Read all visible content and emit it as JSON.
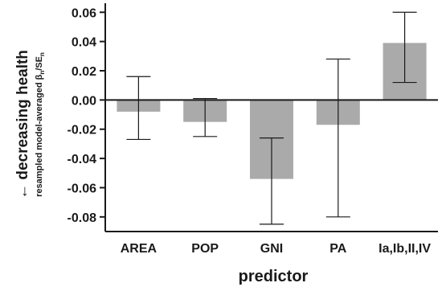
{
  "chart_data": {
    "type": "bar",
    "categories": [
      "AREA",
      "POP",
      "GNI",
      "PA",
      "Ia,Ib,II,IV"
    ],
    "values": [
      -0.008,
      -0.015,
      -0.054,
      -0.017,
      0.039
    ],
    "error_low": [
      -0.027,
      -0.025,
      -0.085,
      -0.08,
      0.012
    ],
    "error_high": [
      0.016,
      0.001,
      -0.026,
      0.028,
      0.06
    ],
    "xlabel": "predictor",
    "ylabel": "← decreasing health",
    "ylabel_sub": "resampled model-averaged β",
    "ylabel_sub_sub": "n",
    "ylabel_sub_mid": "/SE",
    "ylabel_sub_end": "n",
    "yticks": [
      "0.06",
      "0.04",
      "0.02",
      "0.00",
      "-0.02",
      "-0.04",
      "-0.06",
      "-0.08"
    ],
    "ytick_values": [
      0.06,
      0.04,
      0.02,
      0.0,
      -0.02,
      -0.04,
      -0.06,
      -0.08
    ],
    "ylim": [
      -0.09,
      0.064
    ],
    "bar_color": "#aaaaaa",
    "grid": false
  }
}
